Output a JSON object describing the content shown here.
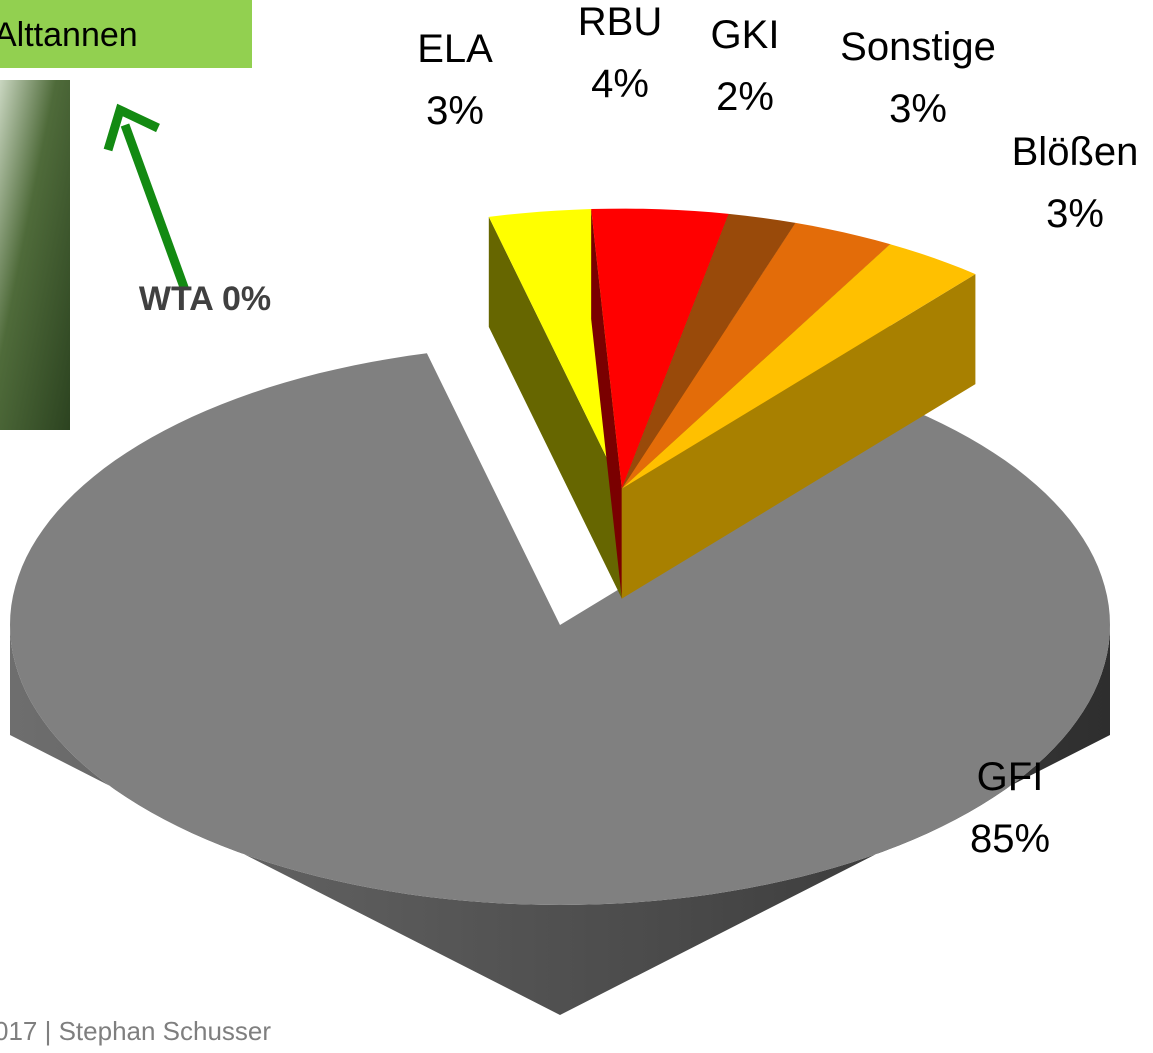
{
  "chart_data": {
    "type": "pie",
    "categories": [
      "GFI",
      "ELA",
      "RBU",
      "GKI",
      "Sonstige",
      "Blößen"
    ],
    "values": [
      85,
      3,
      4,
      2,
      3,
      3
    ],
    "value_labels": [
      "85%",
      "3%",
      "4%",
      "2%",
      "3%",
      "3%"
    ],
    "colors": [
      "#808080",
      "#ffff00",
      "#ff0000",
      "#994a0a",
      "#e36c09",
      "#ffc000"
    ],
    "wall_colors": [
      "#444444",
      "#666600",
      "#7a0000",
      "#6a3300",
      "#a84e06",
      "#a88000"
    ],
    "annotation": "WTA 0%"
  },
  "header": {
    "label": "Alttannen"
  },
  "footer": {
    "text": "017  |  Stephan Schusser"
  }
}
